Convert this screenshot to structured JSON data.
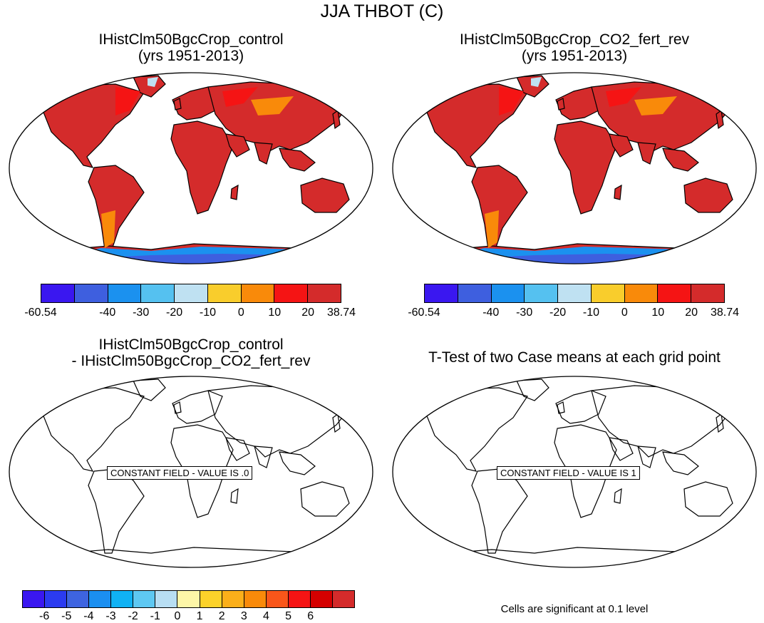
{
  "title": "JJA THBOT (C)",
  "panels": {
    "top_left": {
      "title_line1": "IHistClm50BgcCrop_control",
      "title_line2": "(yrs 1951-2013)",
      "shaded": true
    },
    "top_right": {
      "title_line1": "IHistClm50BgcCrop_CO2_fert_rev",
      "title_line2": "(yrs 1951-2013)",
      "shaded": true
    },
    "bottom_left": {
      "title_line1": "IHistClm50BgcCrop_control",
      "title_line2": "- IHistClm50BgcCrop_CO2_fert_rev",
      "constant_label": "CONSTANT FIELD - VALUE IS .0"
    },
    "bottom_right": {
      "title_line1": "T-Test of two Case means at each grid point",
      "constant_label": "CONSTANT FIELD - VALUE IS 1",
      "footnote": "Cells are significant at 0.1 level"
    }
  },
  "colorbar_top": {
    "colors": [
      "#3a17f0",
      "#3e5fdf",
      "#1b91ef",
      "#55c1f0",
      "#bfe1f2",
      "#f9cd2c",
      "#f98a0a",
      "#f51414",
      "#d42b2b"
    ],
    "labels": [
      "-60.54",
      "",
      "-40",
      "-30",
      "-20",
      "-10",
      "0",
      "10",
      "20",
      "38.74"
    ]
  },
  "colorbar_bottom": {
    "colors": [
      "#3a17f0",
      "#2b3bf0",
      "#3e64e0",
      "#1b8ff0",
      "#10b2f4",
      "#5ec8f2",
      "#b8def3",
      "#fdf6a8",
      "#fcd22a",
      "#fbaf1a",
      "#f98a0a",
      "#f9561a",
      "#f51414",
      "#d40000",
      "#d42b2b"
    ],
    "labels": [
      "-6",
      "-5",
      "-4",
      "-3",
      "-2",
      "-1",
      "0",
      "1",
      "2",
      "3",
      "4",
      "5",
      "6"
    ]
  }
}
